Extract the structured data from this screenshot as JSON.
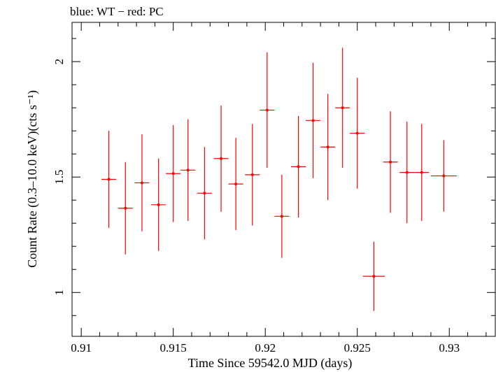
{
  "chart_data": {
    "type": "scatter",
    "title": "blue: WT − red: PC",
    "xlabel": "Time Since 59542.0 MJD (days)",
    "ylabel": "Count Rate (0.3–10.0 keV)(cts s⁻¹)",
    "xlim": [
      0.9095,
      0.9325
    ],
    "ylim": [
      0.81,
      2.17
    ],
    "xticks": [
      0.91,
      0.915,
      0.92,
      0.925,
      0.93
    ],
    "xtick_labels": [
      "0.91",
      "0.915",
      "0.92",
      "0.925",
      "0.93"
    ],
    "yticks": [
      1,
      1.5,
      2
    ],
    "ytick_labels": [
      "1",
      "1.5",
      "2"
    ],
    "grid": false,
    "series": [
      {
        "name": "PC",
        "color": "#ff0000",
        "points": [
          {
            "x": 0.9115,
            "xerr": 0.0004,
            "y": 1.49,
            "yerr": 0.21
          },
          {
            "x": 0.9124,
            "xerr": 0.0004,
            "y": 1.365,
            "yerr": 0.2
          },
          {
            "x": 0.9133,
            "xerr": 0.0004,
            "y": 1.475,
            "yerr": 0.21
          },
          {
            "x": 0.9142,
            "xerr": 0.0004,
            "y": 1.38,
            "yerr": 0.2
          },
          {
            "x": 0.915,
            "xerr": 0.0004,
            "y": 1.515,
            "yerr": 0.21
          },
          {
            "x": 0.9158,
            "xerr": 0.0004,
            "y": 1.53,
            "yerr": 0.22
          },
          {
            "x": 0.9167,
            "xerr": 0.0004,
            "y": 1.43,
            "yerr": 0.2
          },
          {
            "x": 0.9176,
            "xerr": 0.0004,
            "y": 1.58,
            "yerr": 0.23
          },
          {
            "x": 0.9184,
            "xerr": 0.0004,
            "y": 1.47,
            "yerr": 0.2
          },
          {
            "x": 0.9193,
            "xerr": 0.0004,
            "y": 1.51,
            "yerr": 0.22
          },
          {
            "x": 0.9201,
            "xerr": 0.0004,
            "y": 1.79,
            "yerr": 0.25
          },
          {
            "x": 0.9209,
            "xerr": 0.0004,
            "y": 1.33,
            "yerr": 0.18
          },
          {
            "x": 0.9218,
            "xerr": 0.0004,
            "y": 1.545,
            "yerr": 0.22
          },
          {
            "x": 0.9226,
            "xerr": 0.0004,
            "y": 1.745,
            "yerr": 0.25
          },
          {
            "x": 0.9234,
            "xerr": 0.0004,
            "y": 1.63,
            "yerr": 0.23
          },
          {
            "x": 0.9242,
            "xerr": 0.0004,
            "y": 1.8,
            "yerr": 0.26
          },
          {
            "x": 0.925,
            "xerr": 0.0004,
            "y": 1.69,
            "yerr": 0.24
          },
          {
            "x": 0.9259,
            "xerr": 0.0006,
            "y": 1.07,
            "yerr": 0.15
          },
          {
            "x": 0.9268,
            "xerr": 0.0004,
            "y": 1.565,
            "yerr": 0.22
          },
          {
            "x": 0.9277,
            "xerr": 0.0004,
            "y": 1.52,
            "yerr": 0.22
          },
          {
            "x": 0.9285,
            "xerr": 0.0004,
            "y": 1.52,
            "yerr": 0.21
          },
          {
            "x": 0.9297,
            "xerr": 0.0007,
            "y": 1.505,
            "yerr": 0.155
          }
        ]
      }
    ]
  }
}
